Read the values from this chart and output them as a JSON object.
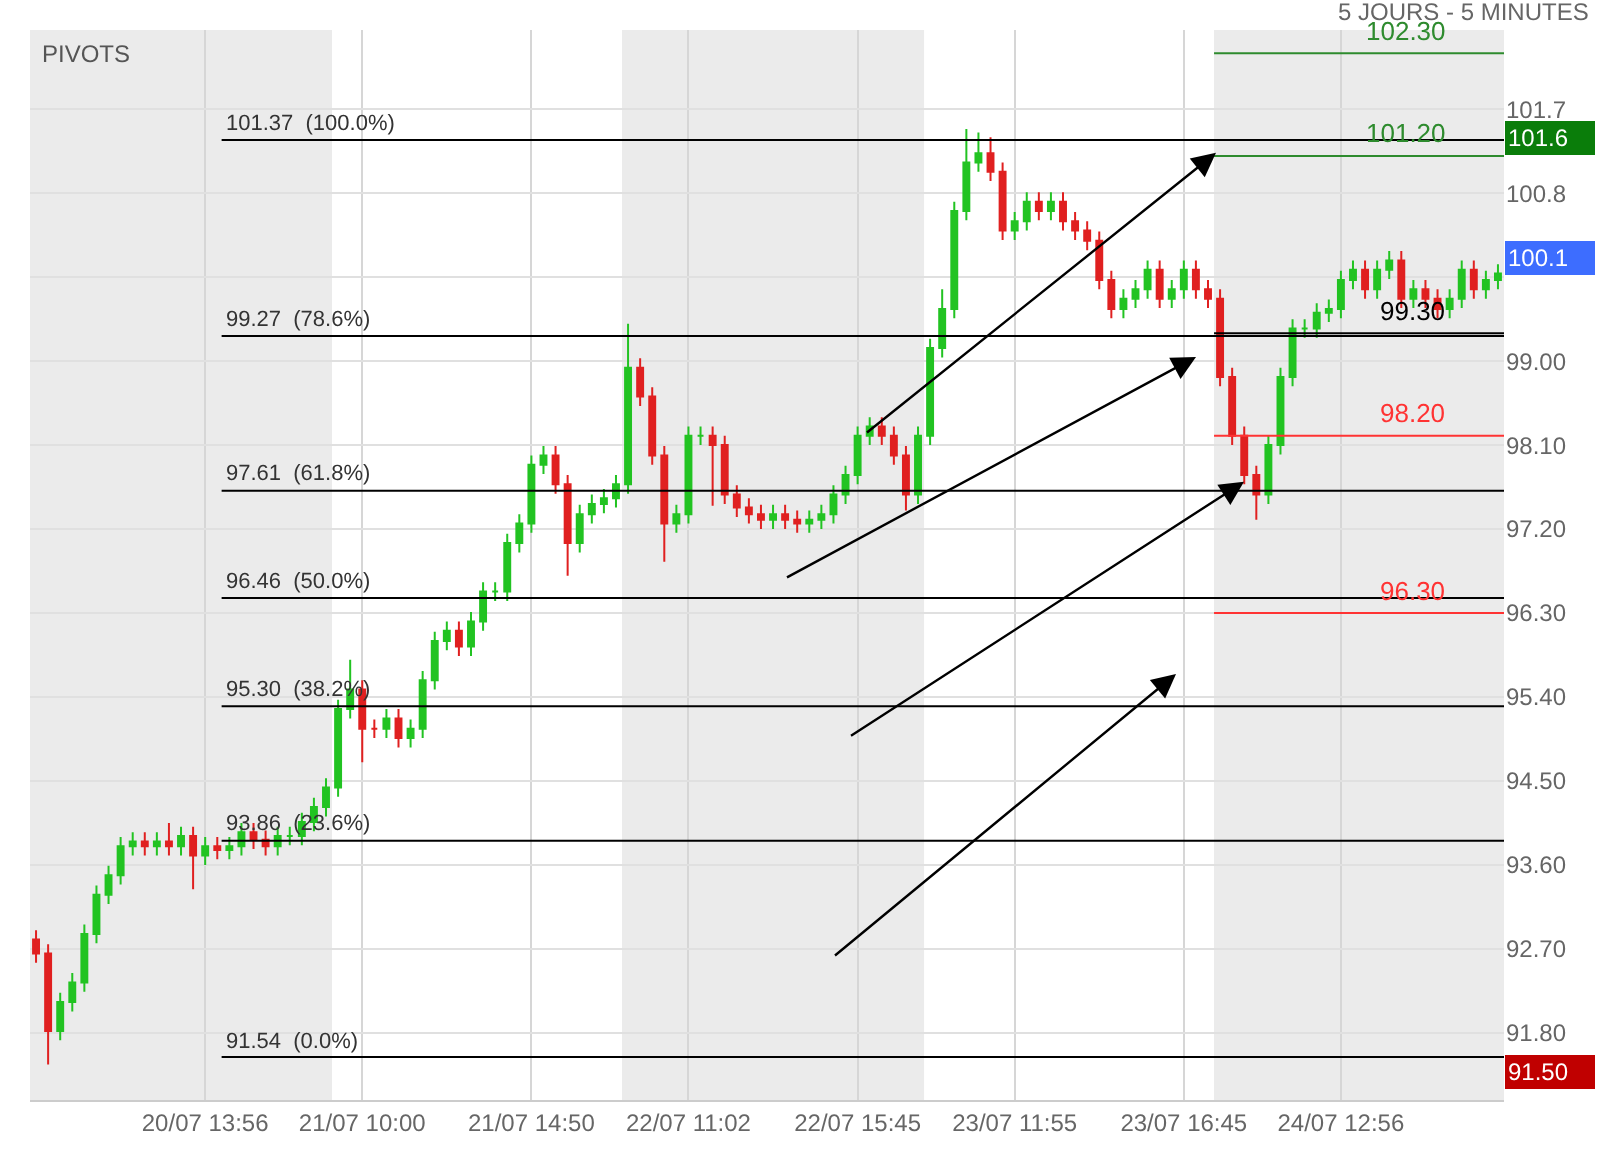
{
  "chart_data": {
    "type": "candlestick",
    "subtitle": "5 JOURS - 5 MINUTES",
    "categories": [
      null,
      null,
      null,
      null,
      null,
      null,
      null,
      null,
      null,
      null,
      null,
      null,
      null,
      null,
      "20/07 13:56",
      null,
      null,
      null,
      null,
      null,
      null,
      null,
      null,
      null,
      null,
      null,
      null,
      "21/07 10:00",
      null,
      null,
      null,
      null,
      null,
      null,
      null,
      null,
      null,
      null,
      null,
      null,
      null,
      "21/07 14:50",
      null,
      null,
      null,
      null,
      null,
      null,
      null,
      null,
      null,
      null,
      null,
      null,
      "22/07 11:02",
      null,
      null,
      null,
      null,
      null,
      null,
      null,
      null,
      null,
      null,
      null,
      null,
      null,
      "22/07 15:45",
      null,
      null,
      null,
      null,
      null,
      null,
      null,
      null,
      null,
      null,
      null,
      null,
      "23/07 11:55",
      null,
      null,
      null,
      null,
      null,
      null,
      null,
      null,
      null,
      null,
      null,
      null,
      null,
      "23/07 16:45",
      null,
      null,
      null,
      null,
      null,
      null,
      null,
      null,
      null,
      null,
      null,
      null,
      "24/07 12:56",
      null,
      null,
      null,
      null,
      null,
      null,
      null,
      null,
      null,
      null,
      null,
      null,
      null
    ],
    "ohlc": [
      [
        92.8,
        92.9,
        92.55,
        92.65
      ],
      [
        92.65,
        92.75,
        91.46,
        91.82
      ],
      [
        91.82,
        92.23,
        91.72,
        92.13
      ],
      [
        92.13,
        92.44,
        92.03,
        92.34
      ],
      [
        92.34,
        92.96,
        92.24,
        92.86
      ],
      [
        92.86,
        93.38,
        92.76,
        93.28
      ],
      [
        93.28,
        93.59,
        93.18,
        93.49
      ],
      [
        93.49,
        93.9,
        93.39,
        93.8
      ],
      [
        93.8,
        93.95,
        93.7,
        93.85
      ],
      [
        93.85,
        93.95,
        93.7,
        93.8
      ],
      [
        93.8,
        93.95,
        93.7,
        93.85
      ],
      [
        93.85,
        94.05,
        93.7,
        93.8
      ],
      [
        93.8,
        94.01,
        93.7,
        93.91
      ],
      [
        93.91,
        94.01,
        93.34,
        93.7
      ],
      [
        93.7,
        93.9,
        93.6,
        93.8
      ],
      [
        93.8,
        93.9,
        93.66,
        93.76
      ],
      [
        93.76,
        93.9,
        93.66,
        93.8
      ],
      [
        93.8,
        94.05,
        93.7,
        93.95
      ],
      [
        93.95,
        94.05,
        93.77,
        93.87
      ],
      [
        93.87,
        93.97,
        93.7,
        93.8
      ],
      [
        93.8,
        94.01,
        93.7,
        93.91
      ],
      [
        93.91,
        94.01,
        93.81,
        93.91
      ],
      [
        93.91,
        94.16,
        93.81,
        94.06
      ],
      [
        94.06,
        94.32,
        93.96,
        94.22
      ],
      [
        94.22,
        94.53,
        94.12,
        94.43
      ],
      [
        94.43,
        95.37,
        94.33,
        95.27
      ],
      [
        95.27,
        95.8,
        95.17,
        95.48
      ],
      [
        95.48,
        95.58,
        94.7,
        95.06
      ],
      [
        95.06,
        95.16,
        94.96,
        95.06
      ],
      [
        95.06,
        95.27,
        94.96,
        95.17
      ],
      [
        95.17,
        95.27,
        94.86,
        94.96
      ],
      [
        94.96,
        95.16,
        94.86,
        95.06
      ],
      [
        95.06,
        95.68,
        94.96,
        95.58
      ],
      [
        95.58,
        96.1,
        95.48,
        96.0
      ],
      [
        96.0,
        96.21,
        95.9,
        96.11
      ],
      [
        96.11,
        96.21,
        95.84,
        95.94
      ],
      [
        95.94,
        96.31,
        95.84,
        96.21
      ],
      [
        96.21,
        96.63,
        96.11,
        96.53
      ],
      [
        96.53,
        96.63,
        96.43,
        96.53
      ],
      [
        96.53,
        97.15,
        96.43,
        97.05
      ],
      [
        97.05,
        97.36,
        96.95,
        97.26
      ],
      [
        97.26,
        97.99,
        97.16,
        97.89
      ],
      [
        97.89,
        98.09,
        97.79,
        97.99
      ],
      [
        97.99,
        98.09,
        97.58,
        97.68
      ],
      [
        97.68,
        97.78,
        96.7,
        97.05
      ],
      [
        97.05,
        97.46,
        96.95,
        97.36
      ],
      [
        97.36,
        97.57,
        97.26,
        97.47
      ],
      [
        97.47,
        97.63,
        97.37,
        97.53
      ],
      [
        97.53,
        97.78,
        97.43,
        97.68
      ],
      [
        97.68,
        99.4,
        97.58,
        98.93
      ],
      [
        98.93,
        99.03,
        98.52,
        98.62
      ],
      [
        98.62,
        98.72,
        97.89,
        97.99
      ],
      [
        97.99,
        98.09,
        96.85,
        97.26
      ],
      [
        97.26,
        97.46,
        97.16,
        97.36
      ],
      [
        97.36,
        98.3,
        97.26,
        98.2
      ],
      [
        98.2,
        98.3,
        98.1,
        98.2
      ],
      [
        98.2,
        98.3,
        97.45,
        98.1
      ],
      [
        98.1,
        98.2,
        97.47,
        97.57
      ],
      [
        97.57,
        97.67,
        97.33,
        97.43
      ],
      [
        97.43,
        97.53,
        97.26,
        97.36
      ],
      [
        97.36,
        97.46,
        97.2,
        97.3
      ],
      [
        97.3,
        97.46,
        97.2,
        97.36
      ],
      [
        97.36,
        97.46,
        97.2,
        97.3
      ],
      [
        97.3,
        97.4,
        97.16,
        97.26
      ],
      [
        97.26,
        97.4,
        97.16,
        97.3
      ],
      [
        97.3,
        97.46,
        97.2,
        97.36
      ],
      [
        97.36,
        97.67,
        97.26,
        97.57
      ],
      [
        97.57,
        97.88,
        97.47,
        97.78
      ],
      [
        97.78,
        98.3,
        97.68,
        98.2
      ],
      [
        98.2,
        98.4,
        98.1,
        98.3
      ],
      [
        98.3,
        98.4,
        98.1,
        98.2
      ],
      [
        98.2,
        98.3,
        97.89,
        97.99
      ],
      [
        97.99,
        98.09,
        97.4,
        97.57
      ],
      [
        97.57,
        98.3,
        97.47,
        98.2
      ],
      [
        98.2,
        99.24,
        98.1,
        99.14
      ],
      [
        99.14,
        99.77,
        99.04,
        99.56
      ],
      [
        99.56,
        100.71,
        99.46,
        100.61
      ],
      [
        100.61,
        101.49,
        100.51,
        101.13
      ],
      [
        101.13,
        101.45,
        101.03,
        101.23
      ],
      [
        101.23,
        101.4,
        100.93,
        101.03
      ],
      [
        101.03,
        101.13,
        100.3,
        100.4
      ],
      [
        100.4,
        100.6,
        100.3,
        100.5
      ],
      [
        100.5,
        100.81,
        100.4,
        100.71
      ],
      [
        100.71,
        100.81,
        100.51,
        100.61
      ],
      [
        100.61,
        100.81,
        100.51,
        100.71
      ],
      [
        100.71,
        100.81,
        100.4,
        100.5
      ],
      [
        100.5,
        100.6,
        100.3,
        100.4
      ],
      [
        100.4,
        100.5,
        100.19,
        100.29
      ],
      [
        100.29,
        100.39,
        99.77,
        99.87
      ],
      [
        99.87,
        99.97,
        99.46,
        99.56
      ],
      [
        99.56,
        99.77,
        99.46,
        99.67
      ],
      [
        99.67,
        99.87,
        99.57,
        99.77
      ],
      [
        99.77,
        100.08,
        99.67,
        99.98
      ],
      [
        99.98,
        100.08,
        99.57,
        99.67
      ],
      [
        99.67,
        99.87,
        99.57,
        99.77
      ],
      [
        99.77,
        100.08,
        99.67,
        99.98
      ],
      [
        99.98,
        100.08,
        99.67,
        99.77
      ],
      [
        99.77,
        99.87,
        99.57,
        99.67
      ],
      [
        99.67,
        99.77,
        98.73,
        98.83
      ],
      [
        98.83,
        98.93,
        98.1,
        98.2
      ],
      [
        98.2,
        98.3,
        97.68,
        97.78
      ],
      [
        97.78,
        97.88,
        97.3,
        97.57
      ],
      [
        97.57,
        98.2,
        97.47,
        98.1
      ],
      [
        98.1,
        98.93,
        98.0,
        98.83
      ],
      [
        98.83,
        99.45,
        98.73,
        99.35
      ],
      [
        99.35,
        99.45,
        99.25,
        99.35
      ],
      [
        99.35,
        99.62,
        99.25,
        99.52
      ],
      [
        99.52,
        99.66,
        99.42,
        99.56
      ],
      [
        99.56,
        99.97,
        99.46,
        99.87
      ],
      [
        99.87,
        100.08,
        99.77,
        99.98
      ],
      [
        99.98,
        100.08,
        99.67,
        99.77
      ],
      [
        99.77,
        100.08,
        99.67,
        99.98
      ],
      [
        99.98,
        100.18,
        99.88,
        100.08
      ],
      [
        100.08,
        100.18,
        99.57,
        99.67
      ],
      [
        99.67,
        99.87,
        99.57,
        99.77
      ],
      [
        99.77,
        99.87,
        99.57,
        99.67
      ],
      [
        99.67,
        99.77,
        99.46,
        99.56
      ],
      [
        99.56,
        99.77,
        99.46,
        99.67
      ],
      [
        99.67,
        100.08,
        99.57,
        99.98
      ],
      [
        99.98,
        100.08,
        99.67,
        99.77
      ],
      [
        99.77,
        99.97,
        99.67,
        99.87
      ],
      [
        99.87,
        100.04,
        99.77,
        99.94
      ]
    ],
    "ylim": [
      91.08,
      102.55
    ],
    "yticks": [
      {
        "value": 91.8,
        "label": "91.80"
      },
      {
        "value": 92.7,
        "label": "92.70"
      },
      {
        "value": 93.6,
        "label": "93.60"
      },
      {
        "value": 94.5,
        "label": "94.50"
      },
      {
        "value": 95.4,
        "label": "95.40"
      },
      {
        "value": 96.3,
        "label": "96.30"
      },
      {
        "value": 97.2,
        "label": "97.20"
      },
      {
        "value": 98.1,
        "label": "98.10"
      },
      {
        "value": 99.0,
        "label": "99.00"
      },
      {
        "value": 99.9,
        "label": null
      },
      100.8,
      101.7
    ],
    "grid": true,
    "legend": false,
    "ref_lines": [
      {
        "axis": "y",
        "value": 101.37,
        "label": "101.37  (100.0%)",
        "color": "#000000"
      },
      {
        "axis": "y",
        "value": 99.27,
        "label": "99.27  (78.6%)",
        "color": "#000000"
      },
      {
        "axis": "y",
        "value": 97.61,
        "label": "97.61  (61.8%)",
        "color": "#000000"
      },
      {
        "axis": "y",
        "value": 96.46,
        "label": "96.46  (50.0%)",
        "color": "#000000"
      },
      {
        "axis": "y",
        "value": 95.3,
        "label": "95.30  (38.2%)",
        "color": "#000000"
      },
      {
        "axis": "y",
        "value": 93.86,
        "label": "93.86  (23.6%)",
        "color": "#000000"
      },
      {
        "axis": "y",
        "value": 91.54,
        "label": "91.54  (0.0%)",
        "color": "#000000"
      },
      {
        "axis": "y",
        "value": 102.3,
        "label": "102.30",
        "color": "#2e8b2e"
      },
      {
        "axis": "y",
        "value": 101.2,
        "label": "101.20",
        "color": "#2e8b2e"
      },
      {
        "axis": "y",
        "value": 99.3,
        "label": "99.30",
        "color": "#000000"
      },
      {
        "axis": "y",
        "value": 98.2,
        "label": "98.20",
        "color": "#ff3333"
      },
      {
        "axis": "y",
        "value": 96.3,
        "label": "96.30",
        "color": "#ff3333"
      }
    ],
    "annotations": [
      "PIVOTS",
      "101.6",
      "100.1",
      "91.50"
    ]
  }
}
